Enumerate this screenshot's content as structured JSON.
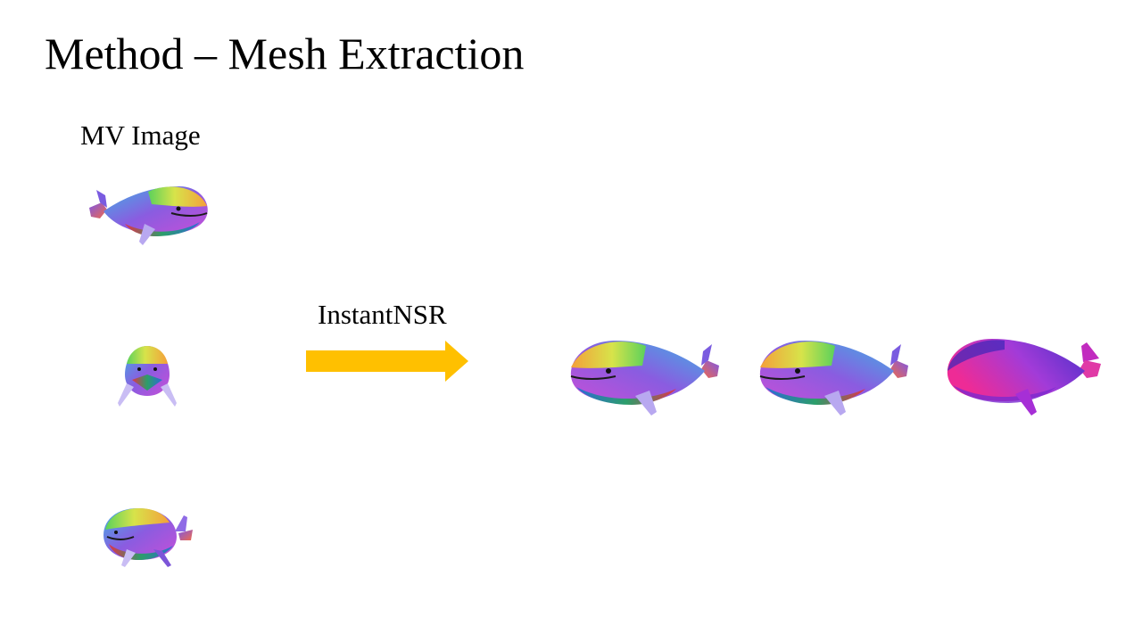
{
  "slide": {
    "title": "Method – Mesh Extraction",
    "input_label": "MV Image",
    "process_label": "InstantNSR"
  },
  "colors": {
    "arrow": "#FFC000",
    "text": "#000000",
    "background": "#FFFFFF",
    "normal_body": "#9B2FD0",
    "normal_tail": "#E0249C"
  },
  "images": {
    "input_views": [
      "whale-side-view",
      "whale-front-view",
      "whale-three-quarter-view"
    ],
    "outputs": [
      "reconstructed-rgb-view",
      "reconstructed-rgb-view",
      "normal-map-view"
    ]
  }
}
